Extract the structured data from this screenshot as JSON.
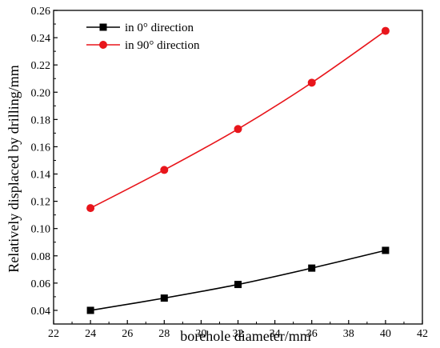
{
  "chart_data": {
    "type": "line",
    "title": "",
    "xlabel": "borehole diameter/mm",
    "ylabel": "Relatively displaced by drilling/mm",
    "xlim": [
      22,
      42
    ],
    "ylim": [
      0.03,
      0.26
    ],
    "x_ticks": [
      22,
      24,
      26,
      28,
      30,
      32,
      34,
      36,
      38,
      40,
      42
    ],
    "y_ticks": [
      0.04,
      0.06,
      0.08,
      0.1,
      0.12,
      0.14,
      0.16,
      0.18,
      0.2,
      0.22,
      0.24,
      0.26
    ],
    "x_tick_labels": [
      "22",
      "24",
      "26",
      "28",
      "30",
      "32",
      "34",
      "36",
      "38",
      "40",
      "42"
    ],
    "y_tick_labels": [
      "0.04",
      "0.06",
      "0.08",
      "0.10",
      "0.12",
      "0.14",
      "0.16",
      "0.18",
      "0.20",
      "0.22",
      "0.24",
      "0.26"
    ],
    "grid": false,
    "legend_position": "top-left",
    "x": [
      24,
      28,
      32,
      36,
      40
    ],
    "series": [
      {
        "name": "in 0° direction",
        "values": [
          0.04,
          0.049,
          0.059,
          0.071,
          0.084
        ],
        "color": "#000000",
        "marker": "square"
      },
      {
        "name": "in 90° direction",
        "values": [
          0.115,
          0.143,
          0.173,
          0.207,
          0.245
        ],
        "color": "#e8151b",
        "marker": "circle"
      }
    ]
  }
}
